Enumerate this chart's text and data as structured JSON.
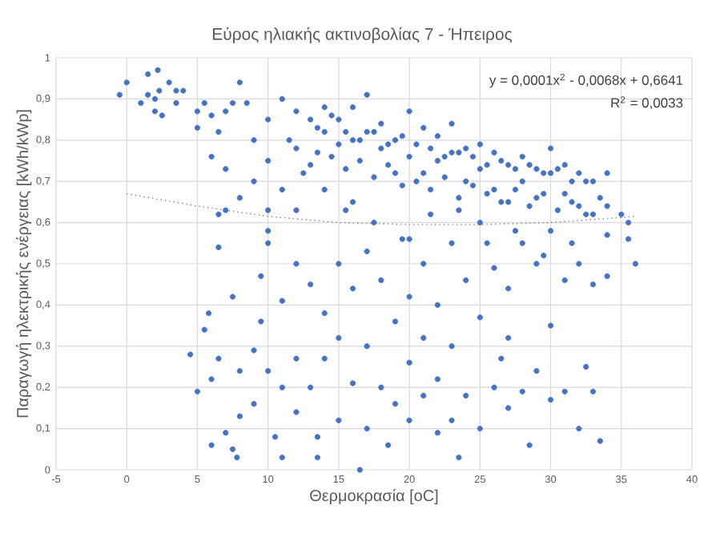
{
  "chart_data": {
    "type": "scatter",
    "title": "Εύρος ηλιακής ακτινοβολίας 7 - Ήπειρος",
    "xlabel": "Θερμοκρασία [oC]",
    "ylabel": "Παραγωγή ηλεκτρικής ενέργειας [kWh/kWp]",
    "annotations": [
      "y = 0,0001x$^{2}$ - 0,0068x + 0,6641",
      "R$^{2}$ = 0,0033"
    ],
    "xlim": [
      -5,
      40
    ],
    "xticks": [
      -5,
      0,
      5,
      10,
      15,
      20,
      25,
      30,
      35,
      40
    ],
    "ylim": [
      0,
      1
    ],
    "yticks": [
      0,
      {
        "value": 0.1,
        "label": "0,1"
      },
      {
        "value": 0.2,
        "label": "0,2"
      },
      {
        "value": 0.3,
        "label": "0,3"
      },
      {
        "value": 0.4,
        "label": "0,4"
      },
      {
        "value": 0.5,
        "label": "0,5"
      },
      {
        "value": 0.6,
        "label": "0,6"
      },
      {
        "value": 0.7,
        "label": "0,7"
      },
      {
        "value": 0.8,
        "label": "0,8"
      },
      {
        "value": 0.9,
        "label": "0,9"
      },
      1
    ],
    "grid": true,
    "series": [
      {
        "marker": "circle",
        "color": "#4472c4",
        "x": [
          -0.5,
          0,
          1,
          1.5,
          1.5,
          2,
          2,
          2.2,
          2.3,
          2.5,
          3,
          3.5,
          3.5,
          4,
          5,
          5,
          5.5,
          6,
          6,
          6.5,
          6.5,
          6.5,
          7,
          7,
          7,
          7.5,
          8,
          8,
          8.5,
          9,
          9,
          10,
          10,
          10,
          10,
          11,
          11,
          12,
          12,
          12,
          13,
          13,
          14,
          14,
          14,
          15,
          15,
          16,
          16,
          16,
          17,
          17,
          18,
          18,
          19,
          19,
          20,
          20,
          21,
          21,
          22,
          22,
          23,
          23,
          24,
          24,
          25,
          25,
          26,
          26,
          27,
          27,
          28,
          28,
          29,
          29,
          30,
          30,
          31,
          31,
          32,
          32,
          33,
          33,
          34,
          34,
          35,
          35.5,
          36,
          35.5,
          4.5,
          5,
          5.5,
          5.8,
          6,
          6,
          6.5,
          7,
          7.5,
          7.5,
          7.8,
          8,
          8,
          9,
          9,
          9.5,
          9.5,
          10,
          10,
          10.5,
          11,
          11,
          11,
          12,
          12,
          12,
          13,
          13,
          13.5,
          13.5,
          14,
          14,
          15,
          15,
          15,
          16,
          16,
          16.5,
          17,
          17,
          17,
          18,
          18,
          18.5,
          19,
          19,
          20,
          20,
          20,
          20,
          21,
          21,
          21,
          22,
          22,
          22,
          23,
          23,
          23,
          23.5,
          24,
          24,
          25,
          25,
          25,
          26,
          26,
          26.5,
          27,
          27,
          27,
          28,
          28,
          28.5,
          29,
          29,
          30,
          30,
          30,
          31,
          31,
          32,
          32,
          32.5,
          33,
          33,
          33.5,
          34,
          34,
          13.5,
          14.5,
          15.5,
          16.5,
          17.5,
          18.5,
          19.5,
          20.5,
          21.5,
          22.5,
          23.5,
          24.5,
          25.5,
          26.5,
          27.5,
          28.5,
          29.5,
          30.5,
          31.5,
          32.5,
          14.5,
          15.5,
          16.5,
          17.5,
          18.5,
          19.5,
          20.5,
          21.5,
          22.5,
          23.5,
          24.5,
          25.5,
          26.5,
          27.5,
          28.5,
          29.5,
          30.5,
          31.5,
          32.5,
          33.5,
          11.5,
          12.5,
          13.5,
          15.5,
          17.5,
          19.5,
          21.5,
          23.5,
          25.5,
          27.5,
          29.5,
          31.5
        ],
        "values": [
          0.91,
          0.94,
          0.89,
          0.96,
          0.91,
          0.87,
          0.9,
          0.97,
          0.92,
          0.86,
          0.94,
          0.89,
          0.92,
          0.92,
          0.87,
          0.83,
          0.89,
          0.76,
          0.86,
          0.82,
          0.62,
          0.54,
          0.87,
          0.73,
          0.63,
          0.89,
          0.94,
          0.66,
          0.89,
          0.8,
          0.7,
          0.85,
          0.75,
          0.63,
          0.58,
          0.9,
          0.68,
          0.87,
          0.78,
          0.63,
          0.85,
          0.74,
          0.88,
          0.82,
          0.68,
          0.85,
          0.79,
          0.88,
          0.8,
          0.65,
          0.91,
          0.82,
          0.84,
          0.78,
          0.8,
          0.72,
          0.87,
          0.76,
          0.83,
          0.72,
          0.81,
          0.75,
          0.84,
          0.77,
          0.78,
          0.7,
          0.79,
          0.73,
          0.77,
          0.68,
          0.74,
          0.65,
          0.76,
          0.7,
          0.73,
          0.66,
          0.78,
          0.72,
          0.74,
          0.67,
          0.72,
          0.64,
          0.7,
          0.62,
          0.72,
          0.64,
          0.62,
          0.6,
          0.5,
          0.56,
          0.28,
          0.19,
          0.34,
          0.38,
          0.06,
          0.22,
          0.27,
          0.09,
          0.42,
          0.05,
          0.03,
          0.24,
          0.13,
          0.29,
          0.16,
          0.47,
          0.36,
          0.55,
          0.24,
          0.08,
          0.41,
          0.2,
          0.03,
          0.5,
          0.27,
          0.14,
          0.45,
          0.2,
          0.08,
          0.03,
          0.38,
          0.27,
          0.5,
          0.32,
          0.12,
          0.44,
          0.21,
          0.0,
          0.53,
          0.3,
          0.1,
          0.46,
          0.2,
          0.06,
          0.36,
          0.16,
          0.56,
          0.42,
          0.26,
          0.12,
          0.5,
          0.32,
          0.18,
          0.4,
          0.22,
          0.09,
          0.55,
          0.3,
          0.12,
          0.03,
          0.46,
          0.18,
          0.6,
          0.37,
          0.1,
          0.49,
          0.2,
          0.27,
          0.44,
          0.32,
          0.15,
          0.55,
          0.19,
          0.06,
          0.5,
          0.24,
          0.58,
          0.35,
          0.17,
          0.46,
          0.19,
          0.5,
          0.1,
          0.25,
          0.45,
          0.19,
          0.07,
          0.57,
          0.47,
          0.83,
          0.86,
          0.82,
          0.8,
          0.82,
          0.79,
          0.81,
          0.79,
          0.78,
          0.76,
          0.77,
          0.76,
          0.74,
          0.75,
          0.73,
          0.74,
          0.72,
          0.73,
          0.7,
          0.7,
          0.76,
          0.73,
          0.75,
          0.71,
          0.74,
          0.69,
          0.7,
          0.68,
          0.71,
          0.66,
          0.69,
          0.67,
          0.65,
          0.68,
          0.64,
          0.67,
          0.63,
          0.65,
          0.62,
          0.66,
          0.8,
          0.72,
          0.77,
          0.63,
          0.6,
          0.56,
          0.62,
          0.63,
          0.55,
          0.58,
          0.52,
          0.55
        ]
      },
      {
        "type": "line",
        "marker": "none",
        "line_style": "dotted",
        "color": "#7f7f7f",
        "x": [
          0,
          5,
          10,
          15,
          20,
          25,
          30,
          36
        ],
        "values": [
          0.67,
          0.64,
          0.615,
          0.6,
          0.595,
          0.595,
          0.6,
          0.615
        ]
      }
    ]
  }
}
